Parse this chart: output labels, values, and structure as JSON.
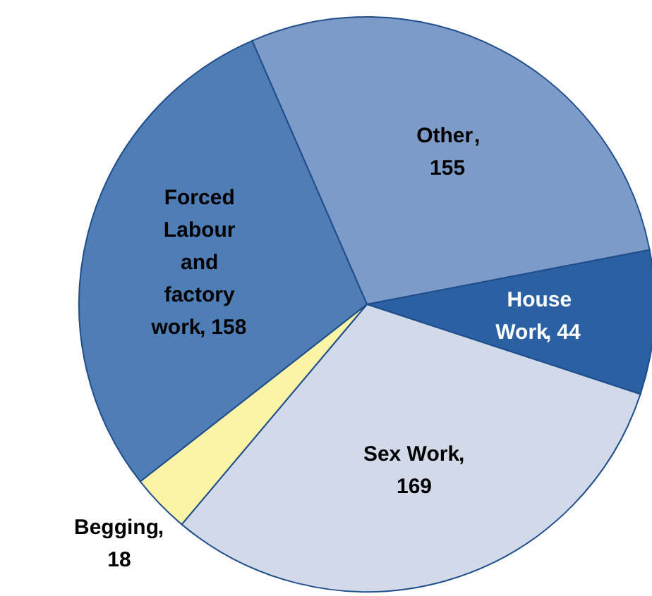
{
  "chart_data": {
    "type": "pie",
    "categories": [
      "Other",
      "House Work",
      "Sex Work",
      "Begging",
      "Forced Labour and factory work"
    ],
    "values": [
      155,
      44,
      169,
      18,
      158
    ],
    "colors": [
      "#7d9bc9",
      "#2b60a3",
      "#d2d9e8",
      "#fbf4a6",
      "#4f7db6"
    ],
    "value_labels": [
      ", 155",
      ", 44",
      ", 169",
      ", 18",
      ", 158"
    ]
  }
}
